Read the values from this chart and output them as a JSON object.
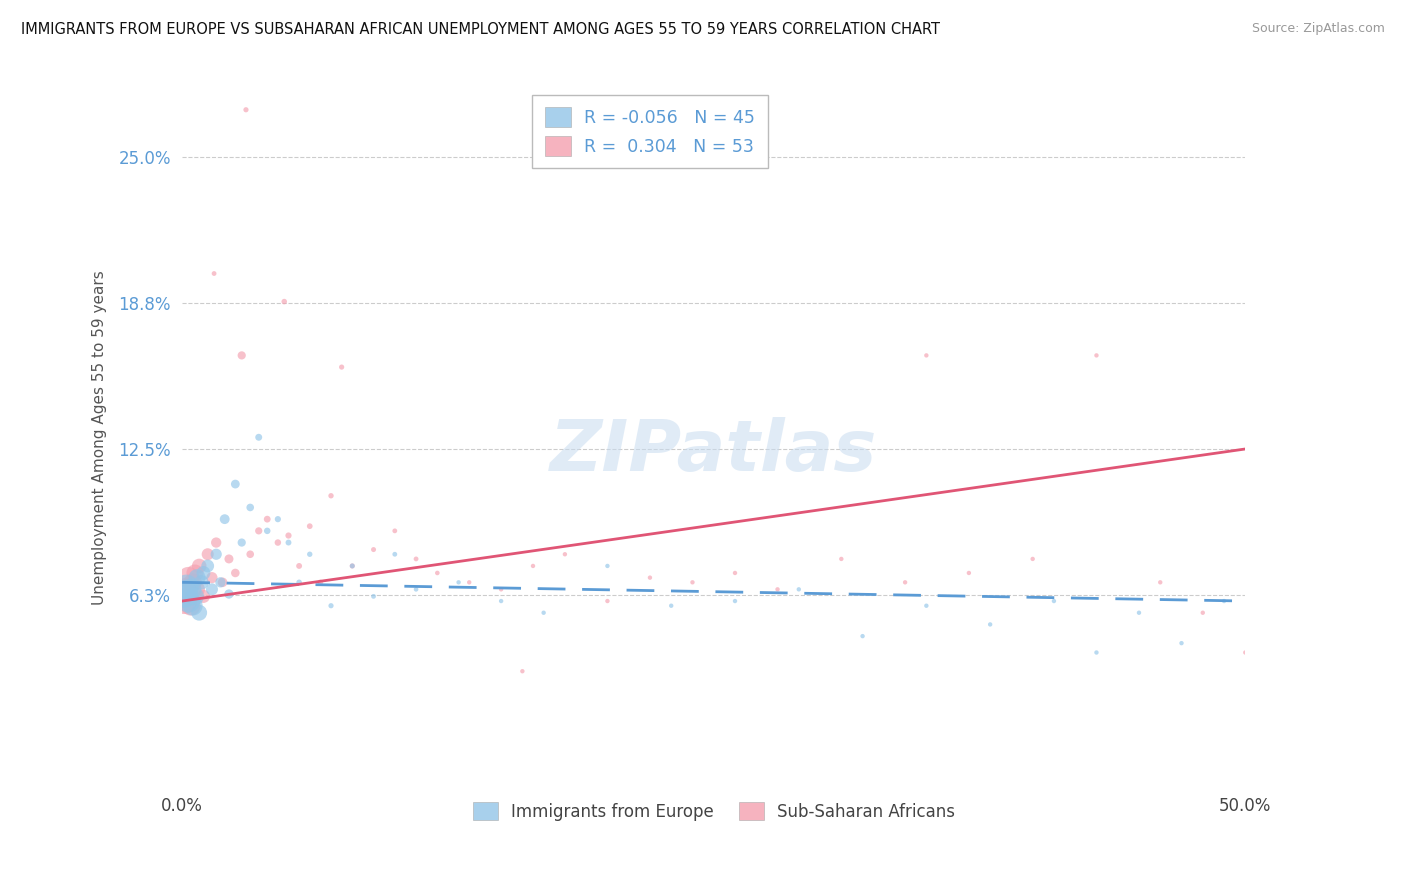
{
  "title": "IMMIGRANTS FROM EUROPE VS SUBSAHARAN AFRICAN UNEMPLOYMENT AMONG AGES 55 TO 59 YEARS CORRELATION CHART",
  "source_text": "Source: ZipAtlas.com",
  "ylabel": "Unemployment Among Ages 55 to 59 years",
  "xmin": 0.0,
  "xmax": 0.5,
  "ymin": -0.02,
  "ymax": 0.28,
  "ytick_vals": [
    0.0,
    0.0625,
    0.125,
    0.1875,
    0.25
  ],
  "ytick_labels": [
    "",
    "6.3%",
    "12.5%",
    "18.8%",
    "25.0%"
  ],
  "xtick_labels": [
    "0.0%",
    "50.0%"
  ],
  "watermark": "ZIPatlas",
  "r_europe": "-0.056",
  "n_europe": "45",
  "r_africa": "0.304",
  "n_africa": "53",
  "color_europe": "#92C5E8",
  "color_africa": "#F4A0B0",
  "color_europe_line": "#5B9BD5",
  "color_africa_line": "#E05575",
  "legend_label_europe": "Immigrants from Europe",
  "legend_label_africa": "Sub-Saharan Africans",
  "europe_x": [
    0.001,
    0.002,
    0.003,
    0.004,
    0.005,
    0.006,
    0.007,
    0.008,
    0.009,
    0.01,
    0.012,
    0.014,
    0.016,
    0.018,
    0.02,
    0.022,
    0.025,
    0.028,
    0.032,
    0.036,
    0.04,
    0.045,
    0.05,
    0.055,
    0.06,
    0.07,
    0.08,
    0.09,
    0.1,
    0.11,
    0.13,
    0.15,
    0.17,
    0.2,
    0.23,
    0.26,
    0.29,
    0.32,
    0.35,
    0.38,
    0.41,
    0.43,
    0.45,
    0.47,
    0.49
  ],
  "europe_y": [
    0.063,
    0.066,
    0.06,
    0.065,
    0.058,
    0.062,
    0.07,
    0.055,
    0.068,
    0.072,
    0.075,
    0.065,
    0.08,
    0.068,
    0.095,
    0.063,
    0.11,
    0.085,
    0.1,
    0.13,
    0.09,
    0.095,
    0.085,
    0.068,
    0.08,
    0.058,
    0.075,
    0.062,
    0.08,
    0.065,
    0.068,
    0.06,
    0.055,
    0.075,
    0.058,
    0.06,
    0.065,
    0.045,
    0.058,
    0.05,
    0.06,
    0.038,
    0.055,
    0.042,
    0.06
  ],
  "europe_sizes": [
    400,
    320,
    280,
    240,
    200,
    170,
    150,
    130,
    110,
    100,
    85,
    75,
    65,
    55,
    50,
    45,
    40,
    35,
    30,
    25,
    22,
    20,
    18,
    16,
    15,
    14,
    13,
    12,
    12,
    11,
    10,
    10,
    10,
    10,
    10,
    10,
    10,
    10,
    10,
    10,
    10,
    10,
    10,
    10,
    10
  ],
  "africa_x": [
    0.001,
    0.002,
    0.003,
    0.004,
    0.005,
    0.006,
    0.007,
    0.008,
    0.01,
    0.012,
    0.014,
    0.016,
    0.019,
    0.022,
    0.025,
    0.028,
    0.032,
    0.036,
    0.04,
    0.045,
    0.05,
    0.055,
    0.06,
    0.065,
    0.07,
    0.08,
    0.09,
    0.1,
    0.11,
    0.12,
    0.135,
    0.15,
    0.165,
    0.18,
    0.2,
    0.22,
    0.24,
    0.26,
    0.28,
    0.31,
    0.34,
    0.37,
    0.4,
    0.43,
    0.46,
    0.48,
    0.5,
    0.015,
    0.03,
    0.048,
    0.075,
    0.16,
    0.35
  ],
  "africa_y": [
    0.06,
    0.065,
    0.07,
    0.058,
    0.068,
    0.072,
    0.065,
    0.075,
    0.062,
    0.08,
    0.07,
    0.085,
    0.068,
    0.078,
    0.072,
    0.165,
    0.08,
    0.09,
    0.095,
    0.085,
    0.088,
    0.075,
    0.092,
    0.068,
    0.105,
    0.075,
    0.082,
    0.09,
    0.078,
    0.072,
    0.068,
    0.065,
    0.075,
    0.08,
    0.06,
    0.07,
    0.068,
    0.072,
    0.065,
    0.078,
    0.068,
    0.072,
    0.078,
    0.165,
    0.068,
    0.055,
    0.038,
    0.2,
    0.27,
    0.188,
    0.16,
    0.03,
    0.165
  ],
  "africa_sizes": [
    350,
    280,
    240,
    200,
    170,
    150,
    130,
    110,
    90,
    75,
    65,
    55,
    48,
    42,
    38,
    35,
    30,
    27,
    24,
    22,
    20,
    18,
    17,
    16,
    15,
    14,
    13,
    12,
    12,
    11,
    10,
    10,
    10,
    10,
    10,
    10,
    10,
    10,
    10,
    10,
    10,
    10,
    10,
    10,
    10,
    10,
    10,
    12,
    14,
    16,
    14,
    10,
    10
  ],
  "eu_line_x": [
    0.0,
    0.5
  ],
  "eu_line_y": [
    0.068,
    0.06
  ],
  "af_line_x": [
    0.0,
    0.5
  ],
  "af_line_y": [
    0.06,
    0.125
  ]
}
